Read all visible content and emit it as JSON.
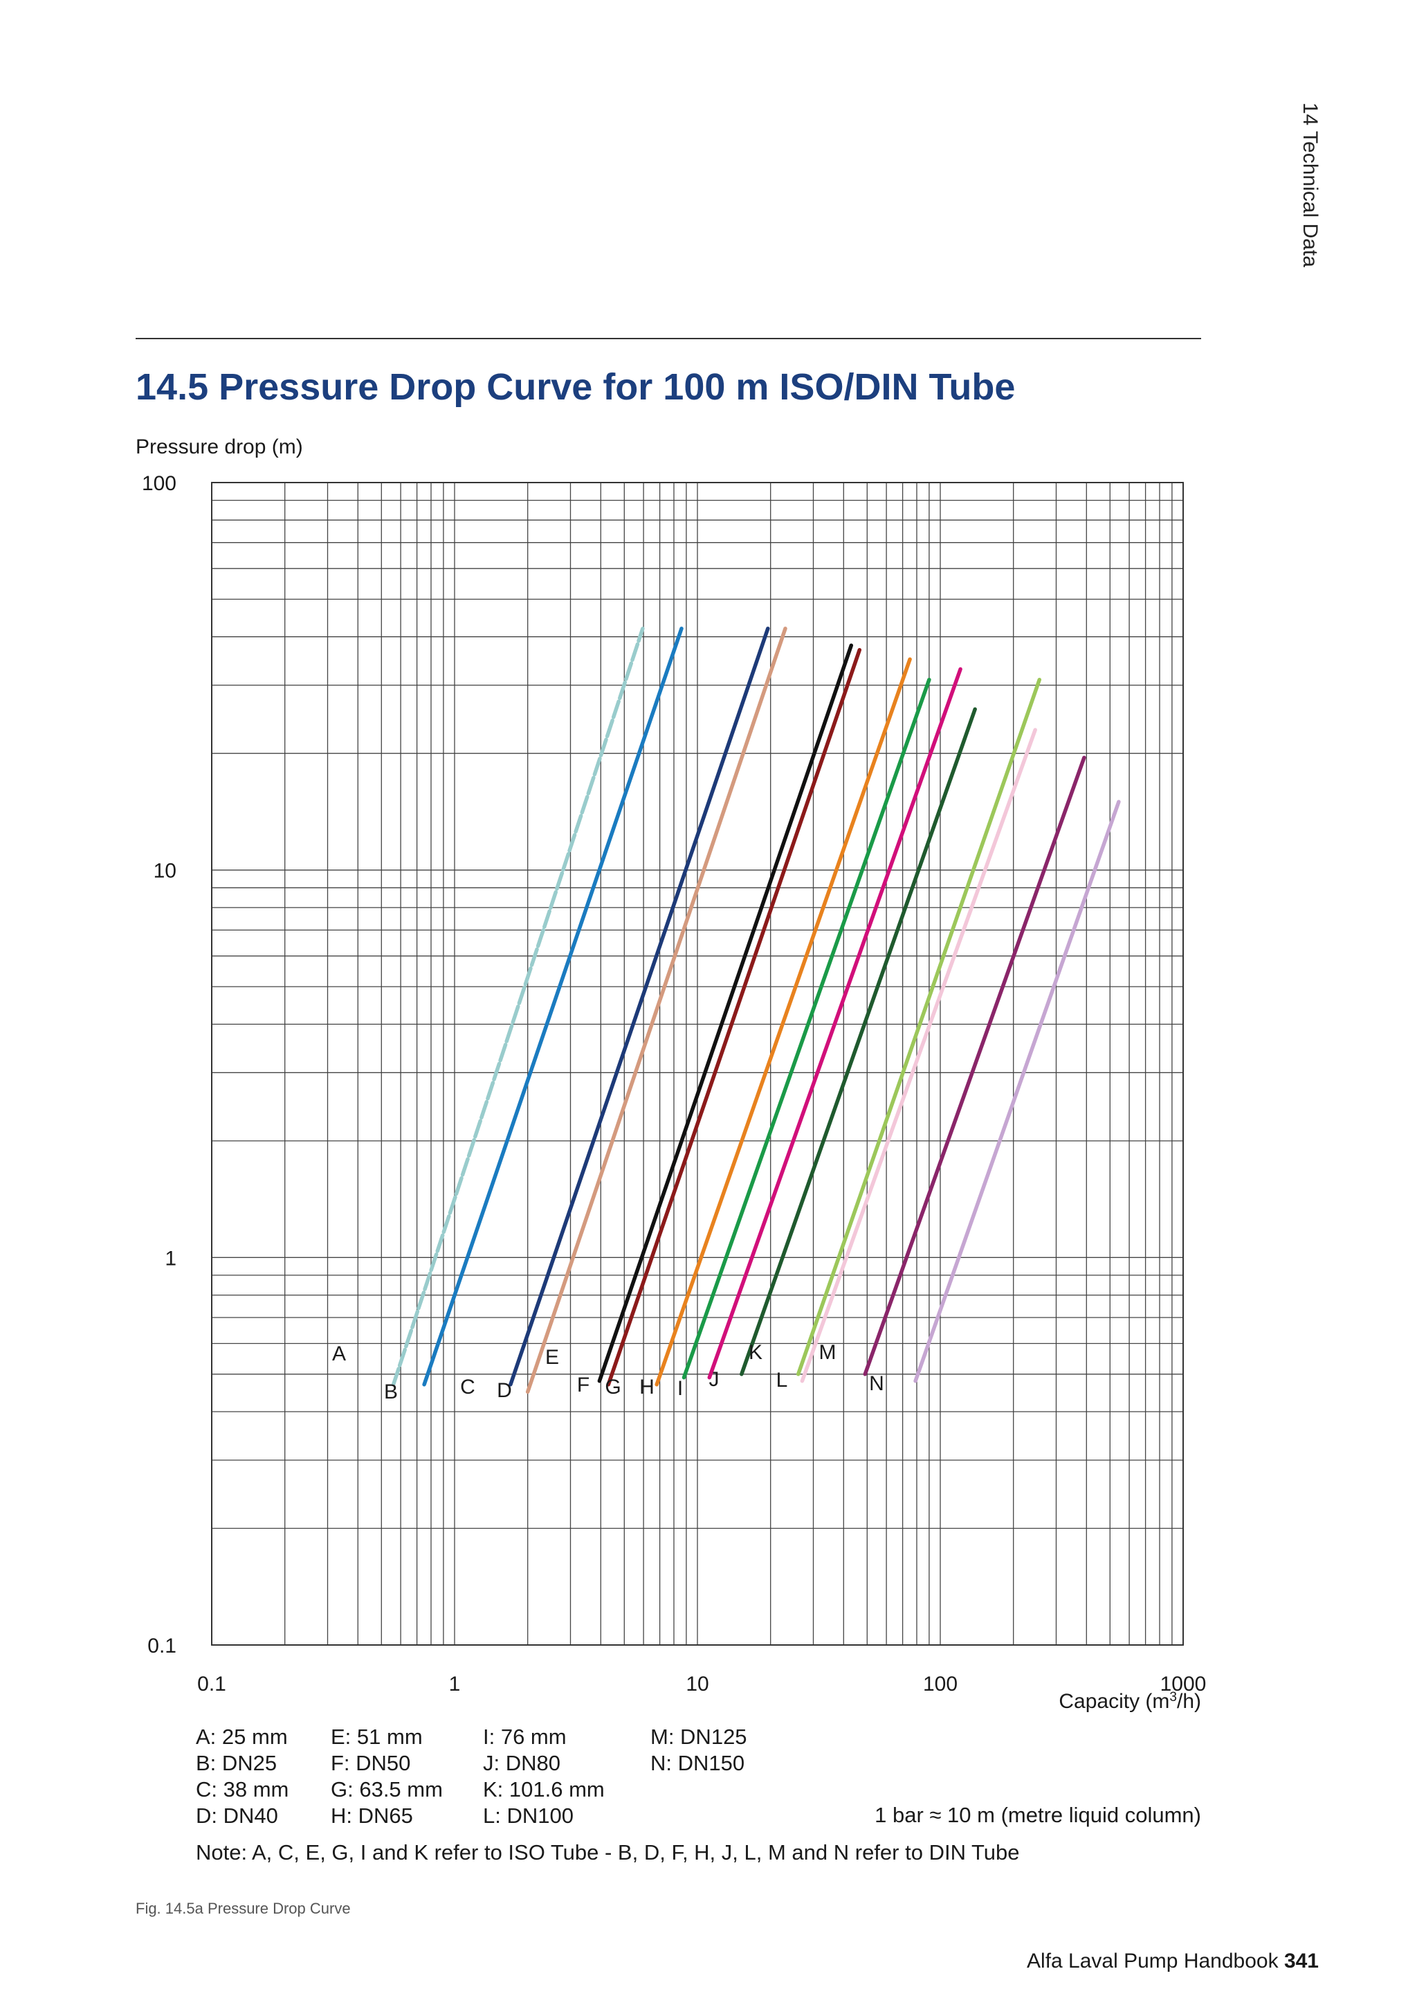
{
  "side_tab": "14 Technical Data",
  "title": "14.5 Pressure Drop Curve for 100 m ISO/DIN Tube",
  "legend_columns": [
    [
      "A: 25 mm",
      "B: DN25",
      "C: 38 mm",
      "D: DN40"
    ],
    [
      "E: 51 mm",
      "F: DN50",
      "G: 63.5 mm",
      "H: DN65"
    ],
    [
      "I: 76 mm",
      "J: DN80",
      "K: 101.6 mm",
      "L: DN100"
    ],
    [
      "M: DN125",
      "N: DN150"
    ]
  ],
  "bar_note": "1 bar ≈ 10 m (metre liquid column)",
  "note": "Note: A, C, E, G, I and K refer to ISO Tube - B, D, F, H, J, L, M and N refer to DIN Tube",
  "figure_caption": "Fig. 14.5a Pressure Drop Curve",
  "footer": {
    "book": "Alfa Laval Pump Handbook",
    "page": "341"
  },
  "chart_data": {
    "type": "line",
    "title": "14.5 Pressure Drop Curve for 100 m ISO/DIN Tube",
    "ylabel": "Pressure drop (m)",
    "xlabel_prefix": "Capacity (m",
    "xlabel_sup": "3",
    "xlabel_suffix": "/h)",
    "xscale": "log",
    "yscale": "log",
    "xlim": [
      0.1,
      1000
    ],
    "ylim": [
      0.1,
      100
    ],
    "x_ticks": [
      "0.1",
      "1",
      "10",
      "100",
      "1000"
    ],
    "y_ticks": [
      "0.1",
      "1",
      "10",
      "100"
    ],
    "grid": true,
    "series": [
      {
        "name": "A",
        "color": "#99cccc",
        "dashed": true,
        "x": [
          0.56,
          5.95
        ],
        "y": [
          0.47,
          42
        ]
      },
      {
        "name": "B",
        "color": "#1a7bc0",
        "dashed": false,
        "x": [
          0.75,
          8.6
        ],
        "y": [
          0.47,
          42
        ]
      },
      {
        "name": "C",
        "color": "#1d3a78",
        "dashed": false,
        "x": [
          1.7,
          19.5
        ],
        "y": [
          0.47,
          42
        ]
      },
      {
        "name": "D",
        "color": "#d49a7e",
        "dashed": false,
        "x": [
          2.0,
          23.0
        ],
        "y": [
          0.45,
          42
        ]
      },
      {
        "name": "E",
        "color": "#111111",
        "dashed": false,
        "x": [
          3.95,
          43.0
        ],
        "y": [
          0.48,
          38
        ]
      },
      {
        "name": "F",
        "color": "#8c1a1a",
        "dashed": false,
        "x": [
          4.3,
          46.5
        ],
        "y": [
          0.47,
          37
        ]
      },
      {
        "name": "G",
        "color": "#e8821e",
        "dashed": false,
        "x": [
          6.8,
          75.0
        ],
        "y": [
          0.47,
          35
        ]
      },
      {
        "name": "H",
        "color": "#1a9a48",
        "dashed": false,
        "x": [
          8.8,
          90.0
        ],
        "y": [
          0.49,
          31
        ]
      },
      {
        "name": "I",
        "color": "#d10f7a",
        "dashed": false,
        "x": [
          11.2,
          121.0
        ],
        "y": [
          0.49,
          33
        ]
      },
      {
        "name": "J",
        "color": "#1f5a2e",
        "dashed": false,
        "x": [
          15.2,
          139.0
        ],
        "y": [
          0.5,
          26
        ]
      },
      {
        "name": "K",
        "color": "#9cc75a",
        "dashed": false,
        "x": [
          26.0,
          256.0
        ],
        "y": [
          0.5,
          31
        ]
      },
      {
        "name": "L",
        "color": "#f3c7d9",
        "dashed": false,
        "x": [
          27.0,
          246.0
        ],
        "y": [
          0.48,
          23
        ]
      },
      {
        "name": "M",
        "color": "#8a2569",
        "dashed": false,
        "x": [
          49.0,
          391.0
        ],
        "y": [
          0.5,
          19.5
        ]
      },
      {
        "name": "N",
        "color": "#c6a6d2",
        "dashed": false,
        "x": [
          79.0,
          543.0
        ],
        "y": [
          0.48,
          15
        ]
      }
    ]
  }
}
